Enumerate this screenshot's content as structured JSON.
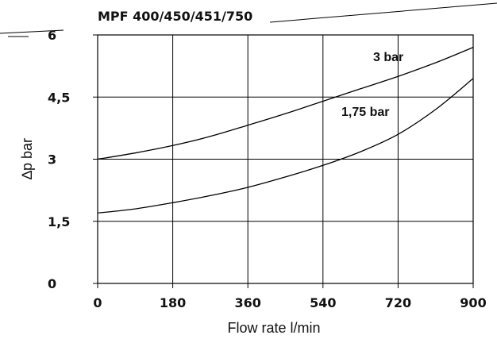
{
  "chart_data": {
    "type": "line",
    "title": "MPF 400/450/451/750",
    "xlabel": "Flow rate l/min",
    "ylabel": "∆p bar",
    "xlim": [
      0,
      900
    ],
    "ylim": [
      0,
      6
    ],
    "x_ticks": [
      "0",
      "180",
      "360",
      "540",
      "720",
      "900"
    ],
    "y_ticks": [
      "0",
      "1,5",
      "3",
      "4,5",
      "6"
    ],
    "grid": true,
    "series": [
      {
        "name": "3 bar",
        "x": [
          0,
          90,
          180,
          270,
          360,
          450,
          540,
          630,
          720,
          810,
          900
        ],
        "y": [
          3.0,
          3.15,
          3.33,
          3.55,
          3.82,
          4.1,
          4.4,
          4.7,
          5.0,
          5.33,
          5.7
        ]
      },
      {
        "name": "1,75 bar",
        "x": [
          0,
          90,
          180,
          270,
          360,
          450,
          540,
          630,
          720,
          810,
          900
        ],
        "y": [
          1.7,
          1.8,
          1.95,
          2.12,
          2.32,
          2.57,
          2.85,
          3.18,
          3.6,
          4.2,
          4.95
        ]
      }
    ]
  }
}
